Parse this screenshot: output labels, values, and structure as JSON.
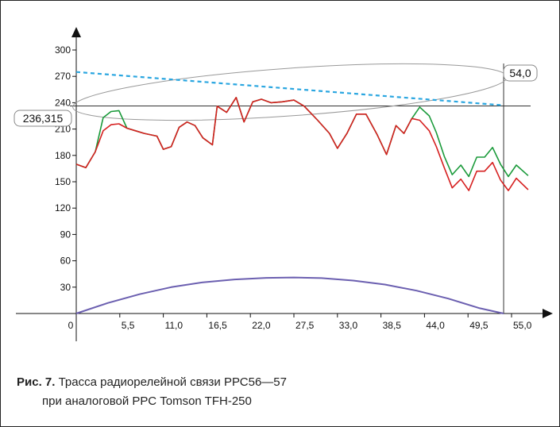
{
  "chart_data": {
    "type": "line",
    "xlim": [
      0,
      55
    ],
    "ylim": [
      0,
      300
    ],
    "x_ticks": [
      "0",
      "5,5",
      "11,0",
      "16,5",
      "22,0",
      "27,5",
      "33,0",
      "38,5",
      "44,0",
      "49,5",
      "55,0"
    ],
    "x_tick_values": [
      0,
      5.5,
      11,
      16.5,
      22,
      27.5,
      33,
      38.5,
      44,
      49.5,
      55
    ],
    "y_ticks": [
      "30",
      "60",
      "90",
      "120",
      "150",
      "180",
      "210",
      "240",
      "270",
      "300"
    ],
    "y_tick_values": [
      30,
      60,
      90,
      120,
      150,
      180,
      210,
      240,
      270,
      300
    ],
    "annotations": {
      "left_value": "236,315",
      "right_value": "54,0",
      "horizontal_line_y": 236.315,
      "right_vertical_x": 54.0
    },
    "series": [
      {
        "color": "#d62020",
        "points": [
          [
            0,
            170
          ],
          [
            1.2,
            166
          ],
          [
            2.4,
            184
          ],
          [
            3.4,
            208
          ],
          [
            4.4,
            215
          ],
          [
            5.4,
            216
          ],
          [
            6.4,
            211
          ],
          [
            7.5,
            208
          ],
          [
            8.6,
            205
          ],
          [
            10.2,
            202
          ],
          [
            11.0,
            187
          ],
          [
            12.0,
            190
          ],
          [
            13.0,
            212
          ],
          [
            14.0,
            218
          ],
          [
            15.0,
            214
          ],
          [
            16.0,
            200
          ],
          [
            17.2,
            192
          ],
          [
            17.8,
            236
          ],
          [
            19.0,
            229
          ],
          [
            20.2,
            246
          ],
          [
            21.2,
            218
          ],
          [
            22.3,
            241
          ],
          [
            23.4,
            244
          ],
          [
            24.6,
            240
          ],
          [
            26.0,
            241
          ],
          [
            27.5,
            243
          ],
          [
            28.8,
            236
          ],
          [
            30.5,
            220
          ],
          [
            32.0,
            205
          ],
          [
            33.0,
            188
          ],
          [
            34.2,
            205
          ],
          [
            35.4,
            227
          ],
          [
            36.6,
            227
          ],
          [
            38.0,
            204
          ],
          [
            39.2,
            181
          ],
          [
            40.4,
            214
          ],
          [
            41.4,
            205
          ],
          [
            42.4,
            222
          ],
          [
            43.4,
            220
          ],
          [
            44.6,
            208
          ],
          [
            45.5,
            190
          ],
          [
            46.5,
            166
          ],
          [
            47.5,
            143
          ],
          [
            48.6,
            153
          ],
          [
            49.6,
            140
          ],
          [
            50.6,
            162
          ],
          [
            51.6,
            162
          ],
          [
            52.6,
            172
          ],
          [
            53.6,
            152
          ],
          [
            54.6,
            140
          ],
          [
            55.6,
            154
          ],
          [
            57.1,
            141
          ]
        ]
      },
      {
        "color": "#1a9a3a",
        "points": [
          [
            0,
            170
          ],
          [
            1.2,
            166
          ],
          [
            2.4,
            184
          ],
          [
            3.4,
            223
          ],
          [
            4.4,
            230
          ],
          [
            5.4,
            231
          ],
          [
            6.4,
            211
          ],
          [
            7.5,
            208
          ],
          [
            8.6,
            205
          ],
          [
            10.2,
            202
          ],
          [
            11.0,
            187
          ],
          [
            12.0,
            190
          ],
          [
            13.0,
            212
          ],
          [
            14.0,
            218
          ],
          [
            15.0,
            214
          ],
          [
            16.0,
            200
          ],
          [
            17.2,
            192
          ],
          [
            17.8,
            236
          ],
          [
            19.0,
            229
          ],
          [
            20.2,
            246
          ],
          [
            21.2,
            218
          ],
          [
            22.3,
            241
          ],
          [
            23.4,
            244
          ],
          [
            24.6,
            240
          ],
          [
            26.0,
            241
          ],
          [
            27.5,
            243
          ],
          [
            28.8,
            236
          ],
          [
            30.5,
            220
          ],
          [
            32.0,
            205
          ],
          [
            33.0,
            188
          ],
          [
            34.2,
            205
          ],
          [
            35.4,
            227
          ],
          [
            36.6,
            227
          ],
          [
            38.0,
            204
          ],
          [
            39.2,
            181
          ],
          [
            40.4,
            214
          ],
          [
            41.4,
            205
          ],
          [
            42.4,
            222
          ],
          [
            43.4,
            235
          ],
          [
            44.6,
            225
          ],
          [
            45.5,
            206
          ],
          [
            46.5,
            179
          ],
          [
            47.5,
            158
          ],
          [
            48.6,
            169
          ],
          [
            49.6,
            156
          ],
          [
            50.6,
            178
          ],
          [
            51.6,
            178
          ],
          [
            52.6,
            189
          ],
          [
            53.6,
            170
          ],
          [
            54.6,
            156
          ],
          [
            55.6,
            169
          ],
          [
            57.1,
            157
          ]
        ]
      },
      {
        "color": "#6b5fb0",
        "points": [
          [
            0,
            0
          ],
          [
            4,
            12
          ],
          [
            8,
            22
          ],
          [
            12,
            30
          ],
          [
            16,
            35.5
          ],
          [
            20,
            38.8
          ],
          [
            24,
            40.6
          ],
          [
            27.5,
            41
          ],
          [
            31,
            40.3
          ],
          [
            35,
            37.5
          ],
          [
            39,
            33
          ],
          [
            43,
            26
          ],
          [
            47,
            17
          ],
          [
            51,
            6
          ],
          [
            54,
            0
          ]
        ]
      },
      {
        "color": "#2aa6e0",
        "dashed": true,
        "points": [
          [
            0,
            275
          ],
          [
            54,
            237
          ]
        ]
      }
    ]
  },
  "caption": {
    "lead": "Рис. 7.",
    "line1": " Трасса радиорелейной связи РРС56—57",
    "line2": "при аналоговой РРС Tomson TFH-250"
  }
}
